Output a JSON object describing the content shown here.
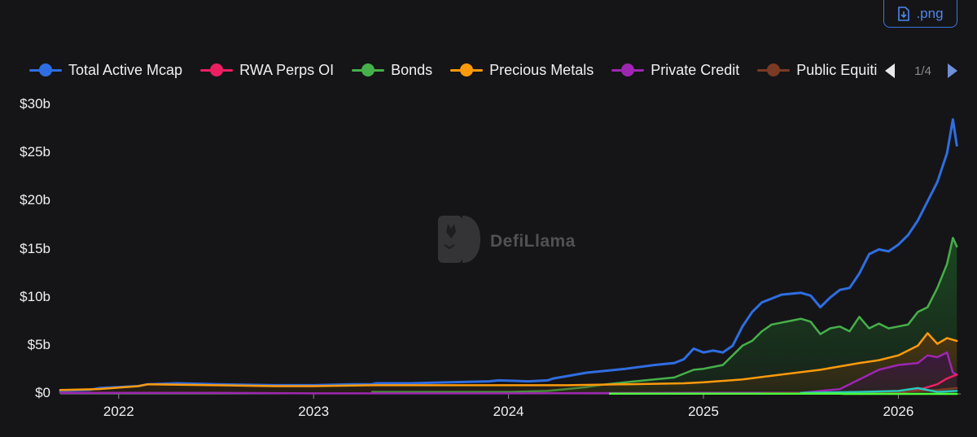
{
  "export": {
    "label": ".png",
    "icon": "download-file-icon"
  },
  "watermark": {
    "text": "DefiLlama",
    "icon": "llama-logo-icon"
  },
  "legend": {
    "items": [
      {
        "label": "Total Active Mcap",
        "color": "#2f6ee2"
      },
      {
        "label": "RWA Perps OI",
        "color": "#ec1f63"
      },
      {
        "label": "Bonds",
        "color": "#46b04a"
      },
      {
        "label": "Precious Metals",
        "color": "#fc9a0c"
      },
      {
        "label": "Private Credit",
        "color": "#9d27b0"
      },
      {
        "label": "Public Equities",
        "color": "#7b3a24"
      }
    ],
    "pager": {
      "label": "1/4"
    }
  },
  "chart_data": {
    "type": "line",
    "xlim": [
      2021.7,
      2026.32
    ],
    "ylim": [
      0,
      30
    ],
    "yticks": [
      0,
      5,
      10,
      15,
      20,
      25,
      30
    ],
    "ytick_labels": [
      "$0",
      "$5b",
      "$10b",
      "$15b",
      "$20b",
      "$25b",
      "$30b"
    ],
    "xticks": [
      2022,
      2023,
      2024,
      2025,
      2026
    ],
    "xtick_labels": [
      "2022",
      "2023",
      "2024",
      "2025",
      "2026"
    ],
    "grid": false,
    "legend_position": "top",
    "series": [
      {
        "name": "Total Active Mcap",
        "color": "#2f6ee2",
        "fill": false,
        "points": [
          [
            2021.7,
            0.3
          ],
          [
            2021.85,
            0.4
          ],
          [
            2021.9,
            0.6
          ],
          [
            2022.1,
            0.8
          ],
          [
            2022.15,
            1.0
          ],
          [
            2022.3,
            1.1
          ],
          [
            2022.5,
            1.0
          ],
          [
            2022.8,
            0.9
          ],
          [
            2023.0,
            0.9
          ],
          [
            2023.2,
            1.0
          ],
          [
            2023.3,
            1.0
          ],
          [
            2023.32,
            1.1
          ],
          [
            2023.5,
            1.1
          ],
          [
            2023.7,
            1.2
          ],
          [
            2023.9,
            1.3
          ],
          [
            2023.95,
            1.4
          ],
          [
            2024.1,
            1.3
          ],
          [
            2024.2,
            1.4
          ],
          [
            2024.23,
            1.6
          ],
          [
            2024.4,
            2.2
          ],
          [
            2024.6,
            2.6
          ],
          [
            2024.75,
            3.0
          ],
          [
            2024.85,
            3.2
          ],
          [
            2024.9,
            3.6
          ],
          [
            2024.95,
            4.7
          ],
          [
            2025.0,
            4.3
          ],
          [
            2025.05,
            4.5
          ],
          [
            2025.1,
            4.3
          ],
          [
            2025.15,
            5.0
          ],
          [
            2025.2,
            7.0
          ],
          [
            2025.25,
            8.5
          ],
          [
            2025.3,
            9.5
          ],
          [
            2025.4,
            10.3
          ],
          [
            2025.5,
            10.5
          ],
          [
            2025.55,
            10.2
          ],
          [
            2025.6,
            9.0
          ],
          [
            2025.65,
            10.0
          ],
          [
            2025.7,
            10.8
          ],
          [
            2025.75,
            11.0
          ],
          [
            2025.8,
            12.5
          ],
          [
            2025.85,
            14.5
          ],
          [
            2025.9,
            15.0
          ],
          [
            2025.95,
            14.8
          ],
          [
            2026.0,
            15.5
          ],
          [
            2026.05,
            16.5
          ],
          [
            2026.1,
            18.0
          ],
          [
            2026.15,
            20.0
          ],
          [
            2026.2,
            22.0
          ],
          [
            2026.25,
            25.0
          ],
          [
            2026.28,
            28.5
          ],
          [
            2026.3,
            25.8
          ]
        ]
      },
      {
        "name": "Bonds",
        "color": "#46b04a",
        "fill": true,
        "fillColor": "#1c4a22",
        "points": [
          [
            2023.3,
            0.2
          ],
          [
            2024.0,
            0.2
          ],
          [
            2024.2,
            0.3
          ],
          [
            2024.4,
            0.7
          ],
          [
            2024.5,
            1.0
          ],
          [
            2024.7,
            1.4
          ],
          [
            2024.85,
            1.7
          ],
          [
            2024.95,
            2.5
          ],
          [
            2025.0,
            2.6
          ],
          [
            2025.1,
            3.0
          ],
          [
            2025.15,
            4.0
          ],
          [
            2025.2,
            5.0
          ],
          [
            2025.25,
            5.5
          ],
          [
            2025.3,
            6.5
          ],
          [
            2025.35,
            7.2
          ],
          [
            2025.45,
            7.6
          ],
          [
            2025.5,
            7.8
          ],
          [
            2025.55,
            7.5
          ],
          [
            2025.6,
            6.2
          ],
          [
            2025.65,
            6.8
          ],
          [
            2025.7,
            7.0
          ],
          [
            2025.75,
            6.5
          ],
          [
            2025.8,
            8.0
          ],
          [
            2025.85,
            6.8
          ],
          [
            2025.9,
            7.3
          ],
          [
            2025.95,
            6.8
          ],
          [
            2026.0,
            7.0
          ],
          [
            2026.05,
            7.2
          ],
          [
            2026.1,
            8.5
          ],
          [
            2026.15,
            9.0
          ],
          [
            2026.2,
            11.0
          ],
          [
            2026.25,
            13.5
          ],
          [
            2026.28,
            16.2
          ],
          [
            2026.3,
            15.3
          ]
        ]
      },
      {
        "name": "Precious Metals",
        "color": "#fc9a0c",
        "fill": true,
        "fillColor": "#4f3410",
        "points": [
          [
            2021.7,
            0.4
          ],
          [
            2021.9,
            0.5
          ],
          [
            2022.1,
            0.8
          ],
          [
            2022.15,
            1.0
          ],
          [
            2022.5,
            0.9
          ],
          [
            2022.8,
            0.8
          ],
          [
            2023.0,
            0.8
          ],
          [
            2023.3,
            0.9
          ],
          [
            2023.7,
            0.9
          ],
          [
            2024.0,
            0.9
          ],
          [
            2024.3,
            0.9
          ],
          [
            2024.6,
            1.0
          ],
          [
            2024.9,
            1.1
          ],
          [
            2025.0,
            1.2
          ],
          [
            2025.2,
            1.5
          ],
          [
            2025.4,
            2.0
          ],
          [
            2025.6,
            2.5
          ],
          [
            2025.8,
            3.2
          ],
          [
            2025.9,
            3.5
          ],
          [
            2026.0,
            4.0
          ],
          [
            2026.1,
            5.0
          ],
          [
            2026.15,
            6.3
          ],
          [
            2026.2,
            5.2
          ],
          [
            2026.25,
            5.8
          ],
          [
            2026.3,
            5.5
          ]
        ]
      },
      {
        "name": "Private Credit",
        "color": "#9d27b0",
        "fill": true,
        "fillColor": "#3a1542",
        "points": [
          [
            2021.7,
            0.1
          ],
          [
            2022.5,
            0.1
          ],
          [
            2023.0,
            0.05
          ],
          [
            2023.5,
            0.05
          ],
          [
            2024.0,
            0.05
          ],
          [
            2025.0,
            0.1
          ],
          [
            2025.5,
            0.1
          ],
          [
            2025.7,
            0.5
          ],
          [
            2025.8,
            1.5
          ],
          [
            2025.9,
            2.5
          ],
          [
            2026.0,
            3.0
          ],
          [
            2026.1,
            3.2
          ],
          [
            2026.15,
            4.0
          ],
          [
            2026.2,
            3.8
          ],
          [
            2026.25,
            4.3
          ],
          [
            2026.28,
            2.2
          ],
          [
            2026.3,
            2.0
          ]
        ]
      },
      {
        "name": "RWA Perps OI",
        "color": "#ec1f63",
        "fill": false,
        "points": [
          [
            2025.8,
            0.0
          ],
          [
            2026.0,
            0.1
          ],
          [
            2026.1,
            0.4
          ],
          [
            2026.2,
            1.0
          ],
          [
            2026.25,
            1.6
          ],
          [
            2026.3,
            2.0
          ]
        ]
      },
      {
        "name": "Public Equities",
        "color": "#7b3a24",
        "fill": false,
        "points": [
          [
            2025.3,
            0.05
          ],
          [
            2025.8,
            0.1
          ],
          [
            2026.0,
            0.2
          ],
          [
            2026.2,
            0.4
          ],
          [
            2026.3,
            0.6
          ]
        ]
      },
      {
        "name": "",
        "color": "#28c7c0",
        "fill": false,
        "points": [
          [
            2025.5,
            0.1
          ],
          [
            2025.8,
            0.2
          ],
          [
            2026.0,
            0.3
          ],
          [
            2026.1,
            0.6
          ],
          [
            2026.2,
            0.2
          ],
          [
            2026.3,
            0.3
          ]
        ]
      },
      {
        "name": "",
        "color": "#4dff3a",
        "fill": false,
        "points": [
          [
            2024.52,
            0.02
          ],
          [
            2025.7,
            0.02
          ],
          [
            2025.72,
            0.0
          ],
          [
            2026.3,
            0.0
          ]
        ]
      }
    ]
  }
}
